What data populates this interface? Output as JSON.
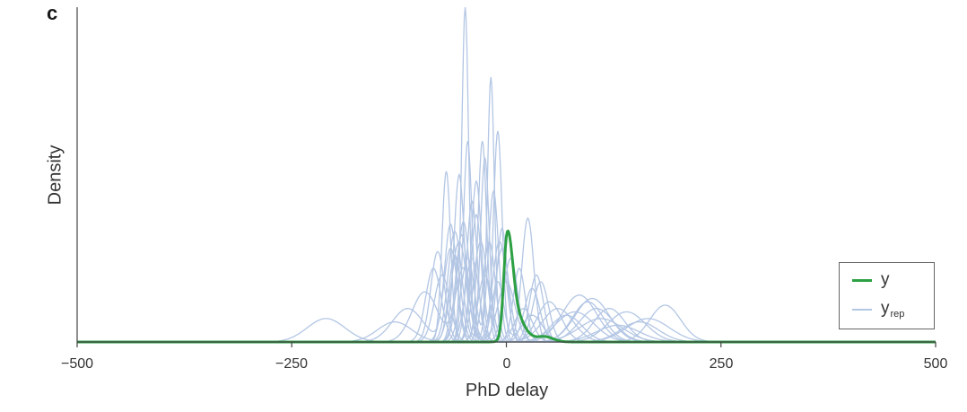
{
  "panel_label": "c",
  "chart_data": {
    "type": "line",
    "title": "",
    "xlabel": "PhD delay",
    "ylabel": "Density",
    "xlim": [
      -500,
      500
    ],
    "ylim": [
      0,
      1
    ],
    "x_ticks": [
      -500,
      -250,
      0,
      250,
      500
    ],
    "x_tick_labels": [
      "−500",
      "−250",
      "0",
      "250",
      "500"
    ],
    "y_ticks_shown": false,
    "grid": false,
    "legend": {
      "placement": "right",
      "entries": [
        {
          "label": "y",
          "sub": "",
          "color": "#2ca043"
        },
        {
          "label": "y",
          "sub": "rep",
          "color": "#b3c6e4"
        }
      ]
    },
    "colors": {
      "observed": "#2ca043",
      "replicated": "#b3c6e4",
      "axis": "#444444"
    },
    "observed": {
      "name": "y",
      "peaks": [
        {
          "center": 1,
          "height": 0.29,
          "width_left": 4,
          "width_right": 6
        },
        {
          "center": 10,
          "height": 0.075,
          "width_left": 8,
          "width_right": 8
        },
        {
          "center": 22,
          "height": 0.02,
          "width_left": 6,
          "width_right": 10
        },
        {
          "center": 45,
          "height": 0.015,
          "width_left": 8,
          "width_right": 10
        }
      ]
    },
    "replicated": [
      {
        "peaks": [
          [
            -48,
            1.0,
            4
          ],
          [
            -10,
            0.18,
            7
          ],
          [
            30,
            0.08,
            12
          ]
        ]
      },
      {
        "peaks": [
          [
            -18,
            0.79,
            4
          ],
          [
            -45,
            0.25,
            8
          ],
          [
            20,
            0.1,
            10
          ]
        ]
      },
      {
        "peaks": [
          [
            -70,
            0.51,
            5
          ],
          [
            -25,
            0.2,
            8
          ],
          [
            85,
            0.14,
            20
          ]
        ]
      },
      {
        "peaks": [
          [
            -10,
            0.63,
            5
          ],
          [
            -55,
            0.3,
            9
          ],
          [
            100,
            0.13,
            20
          ]
        ]
      },
      {
        "peaks": [
          [
            -55,
            0.5,
            6
          ],
          [
            -20,
            0.3,
            7
          ],
          [
            60,
            0.1,
            18
          ]
        ]
      },
      {
        "peaks": [
          [
            -35,
            0.48,
            6
          ],
          [
            -5,
            0.28,
            8
          ],
          [
            185,
            0.11,
            18
          ]
        ]
      },
      {
        "peaks": [
          [
            25,
            0.37,
            7
          ],
          [
            -40,
            0.25,
            8
          ],
          [
            140,
            0.09,
            22
          ]
        ]
      },
      {
        "peaks": [
          [
            -60,
            0.33,
            8
          ],
          [
            0,
            0.18,
            10
          ],
          [
            165,
            0.07,
            25
          ]
        ]
      },
      {
        "peaks": [
          [
            -95,
            0.15,
            15
          ],
          [
            -50,
            0.22,
            9
          ],
          [
            120,
            0.1,
            18
          ]
        ]
      },
      {
        "peaks": [
          [
            -210,
            0.07,
            22
          ],
          [
            -30,
            0.3,
            8
          ],
          [
            30,
            0.16,
            9
          ]
        ]
      },
      {
        "peaks": [
          [
            -115,
            0.1,
            18
          ],
          [
            -65,
            0.35,
            7
          ],
          [
            35,
            0.2,
            8
          ]
        ]
      },
      {
        "peaks": [
          [
            -80,
            0.27,
            8
          ],
          [
            -35,
            0.38,
            6
          ],
          [
            110,
            0.07,
            25
          ]
        ]
      },
      {
        "peaks": [
          [
            -45,
            0.6,
            5
          ],
          [
            15,
            0.22,
            7
          ],
          [
            95,
            0.12,
            18
          ]
        ]
      },
      {
        "peaks": [
          [
            -25,
            0.55,
            5
          ],
          [
            -75,
            0.2,
            9
          ],
          [
            80,
            0.09,
            22
          ]
        ]
      },
      {
        "peaks": [
          [
            -5,
            0.34,
            6
          ],
          [
            -60,
            0.26,
            7
          ],
          [
            70,
            0.08,
            18
          ]
        ]
      },
      {
        "peaks": [
          [
            -40,
            0.42,
            6
          ],
          [
            5,
            0.25,
            8
          ],
          [
            130,
            0.05,
            25
          ]
        ]
      },
      {
        "peaks": [
          [
            -85,
            0.22,
            9
          ],
          [
            -15,
            0.45,
            6
          ],
          [
            50,
            0.12,
            14
          ]
        ]
      },
      {
        "peaks": [
          [
            -50,
            0.36,
            7
          ],
          [
            40,
            0.18,
            9
          ],
          [
            -130,
            0.06,
            20
          ]
        ]
      },
      {
        "peaks": [
          [
            -28,
            0.6,
            5
          ],
          [
            -65,
            0.28,
            8
          ],
          [
            105,
            0.1,
            20
          ]
        ]
      },
      {
        "peaks": [
          [
            -8,
            0.3,
            8
          ],
          [
            -52,
            0.32,
            7
          ],
          [
            155,
            0.06,
            22
          ]
        ]
      }
    ]
  }
}
